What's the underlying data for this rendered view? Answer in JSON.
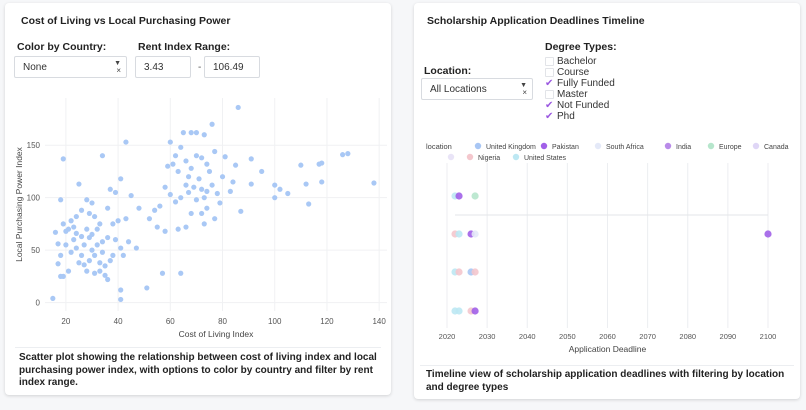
{
  "left_panel": {
    "title": "Cost of Living vs Local Purchasing Power",
    "color_by_label": "Color by Country:",
    "color_by_value": "None",
    "rent_range_label": "Rent Index Range:",
    "rent_min": "3.43",
    "rent_sep": "-",
    "rent_max": "106.49",
    "caption": "Scatter plot showing the relationship between cost of living index and local purchasing power index, with options to color by country and filter by rent index range."
  },
  "right_panel": {
    "title": "Scholarship Application Deadlines Timeline",
    "location_label": "Location:",
    "location_value": "All Locations",
    "degree_label": "Degree Types:",
    "degree_types": [
      {
        "label": "Bachelor",
        "checked": false
      },
      {
        "label": "Course",
        "checked": false
      },
      {
        "label": "Fully Funded",
        "checked": true
      },
      {
        "label": "Master",
        "checked": false
      },
      {
        "label": "Not Funded",
        "checked": true
      },
      {
        "label": "Phd",
        "checked": true
      }
    ],
    "caption": "Timeline view of scholarship application deadlines with filtering by location and degree types"
  },
  "chart_data": [
    {
      "type": "scatter",
      "xlabel": "Cost of Living Index",
      "ylabel": "Local Purchasing Power Index",
      "xlim": [
        12,
        143
      ],
      "ylim": [
        -8,
        195
      ],
      "xticks": [
        20,
        40,
        60,
        80,
        100,
        120,
        140
      ],
      "yticks": [
        0,
        50,
        100,
        150
      ],
      "grid": true,
      "color": "#a9c8f5",
      "points": [
        [
          19,
          137
        ],
        [
          86,
          186
        ],
        [
          76,
          170
        ],
        [
          138,
          114
        ],
        [
          128,
          142
        ],
        [
          126,
          141
        ],
        [
          118,
          133
        ],
        [
          117,
          132
        ],
        [
          110,
          131
        ],
        [
          112,
          113
        ],
        [
          118,
          115
        ],
        [
          113,
          94
        ],
        [
          105,
          104
        ],
        [
          100,
          100
        ],
        [
          100,
          112
        ],
        [
          102,
          108
        ],
        [
          95,
          125
        ],
        [
          91,
          137
        ],
        [
          91,
          113
        ],
        [
          85,
          131
        ],
        [
          81,
          139
        ],
        [
          84,
          115
        ],
        [
          80,
          120
        ],
        [
          79,
          95
        ],
        [
          87,
          87
        ],
        [
          83,
          106
        ],
        [
          77,
          144
        ],
        [
          73,
          160
        ],
        [
          70,
          162
        ],
        [
          68,
          162
        ],
        [
          65,
          162
        ],
        [
          60,
          153
        ],
        [
          62,
          140
        ],
        [
          64,
          148
        ],
        [
          66,
          135
        ],
        [
          68,
          128
        ],
        [
          70,
          140
        ],
        [
          72,
          138
        ],
        [
          74,
          132
        ],
        [
          75,
          125
        ],
        [
          71,
          118
        ],
        [
          67,
          120
        ],
        [
          63,
          125
        ],
        [
          61,
          132
        ],
        [
          59,
          130
        ],
        [
          66,
          112
        ],
        [
          69,
          110
        ],
        [
          72,
          108
        ],
        [
          74,
          106
        ],
        [
          76,
          112
        ],
        [
          78,
          104
        ],
        [
          73,
          100
        ],
        [
          70,
          98
        ],
        [
          67,
          105
        ],
        [
          64,
          100
        ],
        [
          62,
          96
        ],
        [
          60,
          103
        ],
        [
          58,
          110
        ],
        [
          56,
          92
        ],
        [
          54,
          88
        ],
        [
          52,
          80
        ],
        [
          55,
          72
        ],
        [
          58,
          68
        ],
        [
          63,
          70
        ],
        [
          66,
          72
        ],
        [
          68,
          85
        ],
        [
          72,
          85
        ],
        [
          74,
          90
        ],
        [
          77,
          80
        ],
        [
          73,
          75
        ],
        [
          57,
          28
        ],
        [
          64,
          28
        ],
        [
          51,
          14
        ],
        [
          47,
          52
        ],
        [
          44,
          58
        ],
        [
          43,
          80
        ],
        [
          48,
          90
        ],
        [
          45,
          102
        ],
        [
          43,
          153
        ],
        [
          41,
          118
        ],
        [
          39,
          105
        ],
        [
          37,
          108
        ],
        [
          36,
          90
        ],
        [
          38,
          75
        ],
        [
          40,
          78
        ],
        [
          39,
          60
        ],
        [
          41,
          52
        ],
        [
          42,
          45
        ],
        [
          38,
          45
        ],
        [
          36,
          62
        ],
        [
          34,
          58
        ],
        [
          33,
          75
        ],
        [
          32,
          70
        ],
        [
          31,
          82
        ],
        [
          30,
          95
        ],
        [
          29,
          85
        ],
        [
          34,
          140
        ],
        [
          25,
          113
        ],
        [
          28,
          98
        ],
        [
          30,
          50
        ],
        [
          29,
          40
        ],
        [
          28,
          30
        ],
        [
          27,
          55
        ],
        [
          26,
          45
        ],
        [
          25,
          38
        ],
        [
          24,
          52
        ],
        [
          23,
          60
        ],
        [
          22,
          48
        ],
        [
          21,
          70
        ],
        [
          20,
          68
        ],
        [
          22,
          78
        ],
        [
          24,
          82
        ],
        [
          26,
          88
        ],
        [
          18,
          98
        ],
        [
          19,
          75
        ],
        [
          20,
          55
        ],
        [
          17,
          56
        ],
        [
          16,
          67
        ],
        [
          18,
          45
        ],
        [
          17,
          37
        ],
        [
          21,
          30
        ],
        [
          19,
          25
        ],
        [
          18,
          25
        ],
        [
          15,
          4
        ],
        [
          27,
          36
        ],
        [
          31,
          28
        ],
        [
          33,
          30
        ],
        [
          35,
          26
        ],
        [
          36,
          22
        ],
        [
          41,
          12
        ],
        [
          41,
          3
        ],
        [
          37,
          40
        ],
        [
          35,
          35
        ],
        [
          33,
          38
        ],
        [
          31,
          45
        ],
        [
          29,
          62
        ],
        [
          28,
          70
        ],
        [
          30,
          65
        ],
        [
          32,
          55
        ],
        [
          34,
          48
        ],
        [
          26,
          63
        ],
        [
          24,
          66
        ],
        [
          23,
          72
        ]
      ]
    },
    {
      "type": "scatter",
      "title": "",
      "xlabel": "Application Deadline",
      "xlim": [
        2020,
        2100
      ],
      "xticks": [
        2020,
        2030,
        2040,
        2050,
        2060,
        2070,
        2080,
        2090,
        2100
      ],
      "legend_title": "location",
      "legend_position": "top",
      "series": [
        {
          "name": "United Kingdom",
          "color": "#a8c6f4"
        },
        {
          "name": "Pakistan",
          "color": "#a160e8"
        },
        {
          "name": "South Africa",
          "color": "#e4e9f8"
        },
        {
          "name": "India",
          "color": "#b98be9"
        },
        {
          "name": "Europe",
          "color": "#b6e6cc"
        },
        {
          "name": "Canada",
          "color": "#dfd6f6"
        },
        {
          "name": "",
          "color": "#e9e4f7"
        },
        {
          "name": "Nigeria",
          "color": "#f4c7cd"
        },
        {
          "name": "United States",
          "color": "#bde8f3"
        }
      ],
      "points": [
        {
          "row": 0,
          "x": 2022,
          "location": "United States"
        },
        {
          "row": 0,
          "x": 2023,
          "location": "Pakistan"
        },
        {
          "row": 0,
          "x": 2027,
          "location": "Europe"
        },
        {
          "row": 1,
          "x": 2022,
          "location": "Nigeria"
        },
        {
          "row": 1,
          "x": 2023,
          "location": "United States"
        },
        {
          "row": 1,
          "x": 2026,
          "location": "Pakistan"
        },
        {
          "row": 1,
          "x": 2027,
          "location": "South Africa"
        },
        {
          "row": 1,
          "x": 2100,
          "location": "Pakistan"
        },
        {
          "row": 2,
          "x": 2022,
          "location": "United States"
        },
        {
          "row": 2,
          "x": 2023,
          "location": "Nigeria"
        },
        {
          "row": 2,
          "x": 2026,
          "location": "United Kingdom"
        },
        {
          "row": 2,
          "x": 2027,
          "location": "Nigeria"
        },
        {
          "row": 3,
          "x": 2022,
          "location": "United States"
        },
        {
          "row": 3,
          "x": 2023,
          "location": "United States"
        },
        {
          "row": 3,
          "x": 2026,
          "location": "Nigeria"
        },
        {
          "row": 3,
          "x": 2027,
          "location": "Pakistan"
        }
      ]
    }
  ]
}
